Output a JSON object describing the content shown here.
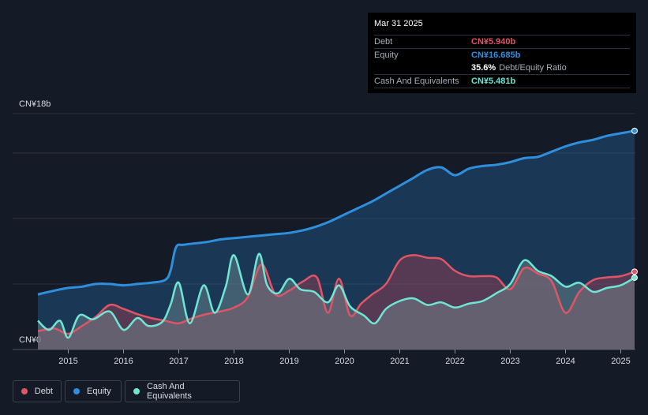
{
  "tooltip": {
    "date": "Mar 31 2025",
    "debt_label": "Debt",
    "debt_value": "CN¥5.940b",
    "equity_label": "Equity",
    "equity_value": "CN¥16.685b",
    "ratio_value": "35.6%",
    "ratio_label": "Debt/Equity Ratio",
    "cash_label": "Cash And Equivalents",
    "cash_value": "CN¥5.481b"
  },
  "legend": {
    "debt": "Debt",
    "equity": "Equity",
    "cash": "Cash And Equivalents"
  },
  "colors": {
    "debt": "#e05565",
    "equity": "#2f8fdd",
    "cash": "#6fe5d4",
    "background": "#151b26"
  },
  "chart_data": {
    "type": "area",
    "x_unit": "year",
    "y_unit": "CN¥ billions",
    "ylim": [
      0,
      18
    ],
    "xlim": [
      2014.45,
      2025.25
    ],
    "y_top_label": "CN¥18b",
    "y_bottom_label": "CN¥0",
    "x_ticks": [
      2015,
      2016,
      2017,
      2018,
      2019,
      2020,
      2021,
      2022,
      2023,
      2024,
      2025
    ],
    "x_tick_labels": [
      "2015",
      "2016",
      "2017",
      "2018",
      "2019",
      "2020",
      "2021",
      "2022",
      "2023",
      "2024",
      "2025"
    ],
    "gridlines_y": [
      0,
      5,
      10,
      15,
      18
    ],
    "series": [
      {
        "name": "Equity",
        "x": [
          2014.45,
          2014.75,
          2015.0,
          2015.25,
          2015.5,
          2015.75,
          2016.0,
          2016.25,
          2016.5,
          2016.75,
          2016.85,
          2016.95,
          2017.1,
          2017.5,
          2017.75,
          2018.0,
          2018.25,
          2018.5,
          2018.75,
          2019.0,
          2019.25,
          2019.5,
          2019.75,
          2020.0,
          2020.25,
          2020.5,
          2020.75,
          2021.0,
          2021.25,
          2021.5,
          2021.75,
          2022.0,
          2022.25,
          2022.5,
          2022.75,
          2023.0,
          2023.25,
          2023.5,
          2023.75,
          2024.0,
          2024.25,
          2024.5,
          2024.75,
          2025.0,
          2025.25
        ],
        "values": [
          4.2,
          4.5,
          4.7,
          4.8,
          5.0,
          5.0,
          4.9,
          5.0,
          5.1,
          5.3,
          6.0,
          7.8,
          8.0,
          8.2,
          8.4,
          8.5,
          8.6,
          8.7,
          8.8,
          8.9,
          9.1,
          9.4,
          9.8,
          10.3,
          10.8,
          11.3,
          11.9,
          12.5,
          13.1,
          13.7,
          13.9,
          13.3,
          13.8,
          14.0,
          14.1,
          14.3,
          14.6,
          14.7,
          15.1,
          15.5,
          15.8,
          16.0,
          16.3,
          16.5,
          16.685
        ]
      },
      {
        "name": "Debt",
        "x": [
          2014.45,
          2014.75,
          2015.0,
          2015.25,
          2015.5,
          2015.75,
          2016.0,
          2016.25,
          2016.5,
          2016.75,
          2017.0,
          2017.25,
          2017.5,
          2017.75,
          2018.0,
          2018.25,
          2018.5,
          2018.75,
          2019.0,
          2019.25,
          2019.5,
          2019.7,
          2019.9,
          2020.1,
          2020.3,
          2020.5,
          2020.75,
          2021.0,
          2021.25,
          2021.5,
          2021.75,
          2022.0,
          2022.25,
          2022.5,
          2022.75,
          2023.0,
          2023.25,
          2023.5,
          2023.75,
          2024.0,
          2024.25,
          2024.5,
          2024.75,
          2025.0,
          2025.25
        ],
        "values": [
          1.4,
          1.6,
          1.2,
          1.8,
          2.5,
          3.4,
          3.1,
          2.7,
          2.4,
          2.2,
          2.0,
          2.4,
          2.7,
          2.9,
          3.2,
          4.0,
          6.5,
          4.2,
          4.5,
          5.2,
          5.5,
          2.8,
          5.4,
          2.6,
          3.5,
          4.2,
          5.0,
          6.8,
          7.2,
          7.0,
          6.9,
          6.0,
          5.6,
          5.6,
          5.5,
          4.6,
          6.2,
          5.8,
          5.2,
          2.8,
          4.4,
          5.3,
          5.5,
          5.6,
          5.94
        ]
      },
      {
        "name": "Cash And Equivalents",
        "x": [
          2014.45,
          2014.65,
          2014.85,
          2015.0,
          2015.2,
          2015.45,
          2015.75,
          2016.0,
          2016.25,
          2016.45,
          2016.7,
          2016.85,
          2017.0,
          2017.2,
          2017.45,
          2017.65,
          2017.85,
          2018.0,
          2018.25,
          2018.45,
          2018.6,
          2018.8,
          2019.0,
          2019.2,
          2019.45,
          2019.7,
          2019.9,
          2020.1,
          2020.35,
          2020.55,
          2020.75,
          2021.0,
          2021.25,
          2021.5,
          2021.75,
          2022.0,
          2022.25,
          2022.5,
          2022.75,
          2023.0,
          2023.25,
          2023.5,
          2023.75,
          2024.0,
          2024.25,
          2024.5,
          2024.75,
          2025.0,
          2025.25
        ],
        "values": [
          2.2,
          1.5,
          2.2,
          0.9,
          2.6,
          2.3,
          2.9,
          1.5,
          2.4,
          1.8,
          2.1,
          3.4,
          5.1,
          2.0,
          4.9,
          2.8,
          4.8,
          7.2,
          4.2,
          7.3,
          4.9,
          4.3,
          5.4,
          4.6,
          4.4,
          3.6,
          4.9,
          3.3,
          2.6,
          2.0,
          3.1,
          3.7,
          3.9,
          3.4,
          3.6,
          3.2,
          3.5,
          3.7,
          4.3,
          5.0,
          6.8,
          6.0,
          5.6,
          4.8,
          5.1,
          4.4,
          4.7,
          4.9,
          5.481
        ]
      }
    ]
  }
}
